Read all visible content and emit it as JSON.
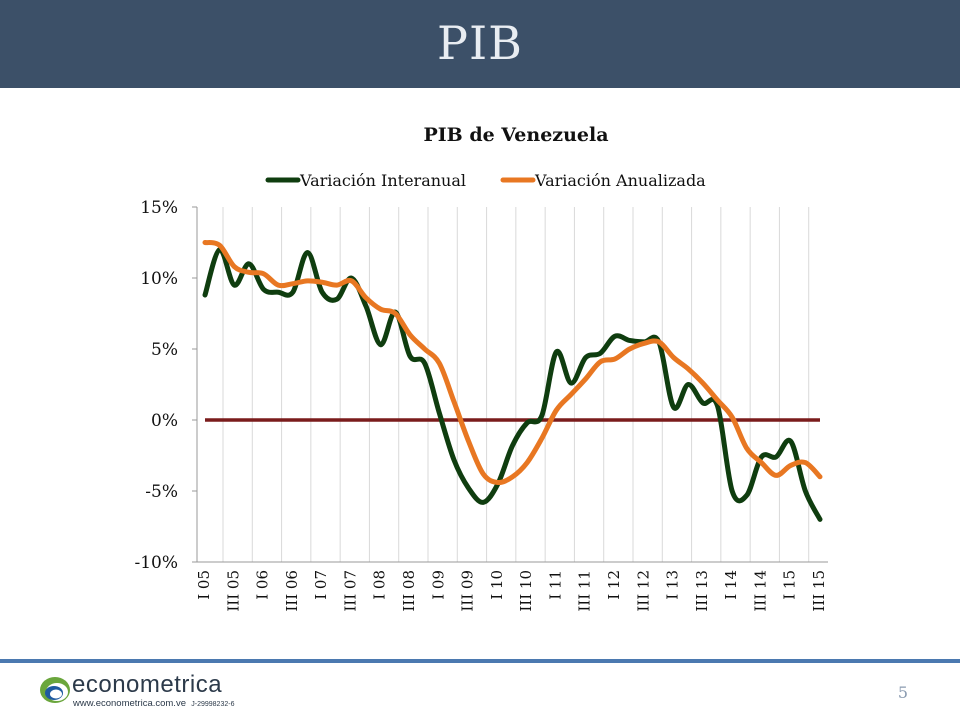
{
  "slide": {
    "title": "PIB",
    "page_number": "5"
  },
  "logo": {
    "name": "econometrica",
    "website": "www.econometrica.com.ve",
    "rif": "J-29998232-6"
  },
  "colors": {
    "header_bg": "#3c5068",
    "series_interanual": "#0f3d0f",
    "series_anualizada": "#e87722",
    "zero_line": "#7a1c1c",
    "footer_line": "#4b79b0"
  },
  "chart_data": {
    "type": "line",
    "title": "PIB de Venezuela",
    "xlabel": "",
    "ylabel": "",
    "ylim": [
      -10,
      15
    ],
    "yticks": [
      "15%",
      "10%",
      "5%",
      "0%",
      "-5%",
      "-10%"
    ],
    "ytick_values": [
      15,
      10,
      5,
      0,
      -5,
      -10
    ],
    "grid": "vertical",
    "legend_position": "top",
    "categories": [
      "I 05",
      "",
      "III 05",
      "",
      "I 06",
      "",
      "III 06",
      "",
      "I 07",
      "",
      "III 07",
      "",
      "I 08",
      "",
      "III 08",
      "",
      "I 09",
      "",
      "III 09",
      "",
      "I 10",
      "",
      "III 10",
      "",
      "I 11",
      "",
      "III 11",
      "",
      "I 12",
      "",
      "III 12",
      "",
      "I 13",
      "",
      "III 13",
      "",
      "I 14",
      "",
      "III 14",
      "",
      "I 15",
      "",
      "III 15"
    ],
    "tick_labels": [
      "I 05",
      "III 05",
      "I 06",
      "III 06",
      "I 07",
      "III 07",
      "I 08",
      "III 08",
      "I 09",
      "III 09",
      "I 10",
      "III 10",
      "I 11",
      "III 11",
      "I 12",
      "III 12",
      "I 13",
      "III 13",
      "I 14",
      "III 14",
      "I 15",
      "III 15"
    ],
    "series": [
      {
        "name": "Variación Interanual",
        "values": [
          8.8,
          12.0,
          9.5,
          11.0,
          9.2,
          9.0,
          9.0,
          11.8,
          9.0,
          8.5,
          10.0,
          8.0,
          5.3,
          7.6,
          4.5,
          4.0,
          0.5,
          -2.8,
          -4.8,
          -5.8,
          -4.5,
          -1.8,
          -0.2,
          0.3,
          4.8,
          2.6,
          4.4,
          4.7,
          5.9,
          5.6,
          5.5,
          5.5,
          0.9,
          2.5,
          1.2,
          1.0,
          -5.0,
          -5.3,
          -2.6,
          -2.6,
          -1.5,
          -5.0,
          -7.0
        ]
      },
      {
        "name": "Variación Anualizada",
        "values": [
          12.5,
          12.3,
          10.8,
          10.4,
          10.3,
          9.5,
          9.6,
          9.8,
          9.7,
          9.5,
          9.8,
          8.6,
          7.8,
          7.5,
          6.0,
          5.0,
          4.0,
          1.3,
          -1.5,
          -3.8,
          -4.4,
          -4.0,
          -3.0,
          -1.3,
          0.7,
          1.8,
          2.9,
          4.1,
          4.3,
          5.0,
          5.4,
          5.5,
          4.4,
          3.6,
          2.6,
          1.4,
          0.2,
          -2.0,
          -3.0,
          -3.9,
          -3.2,
          -3.0,
          -4.0
        ]
      }
    ]
  }
}
